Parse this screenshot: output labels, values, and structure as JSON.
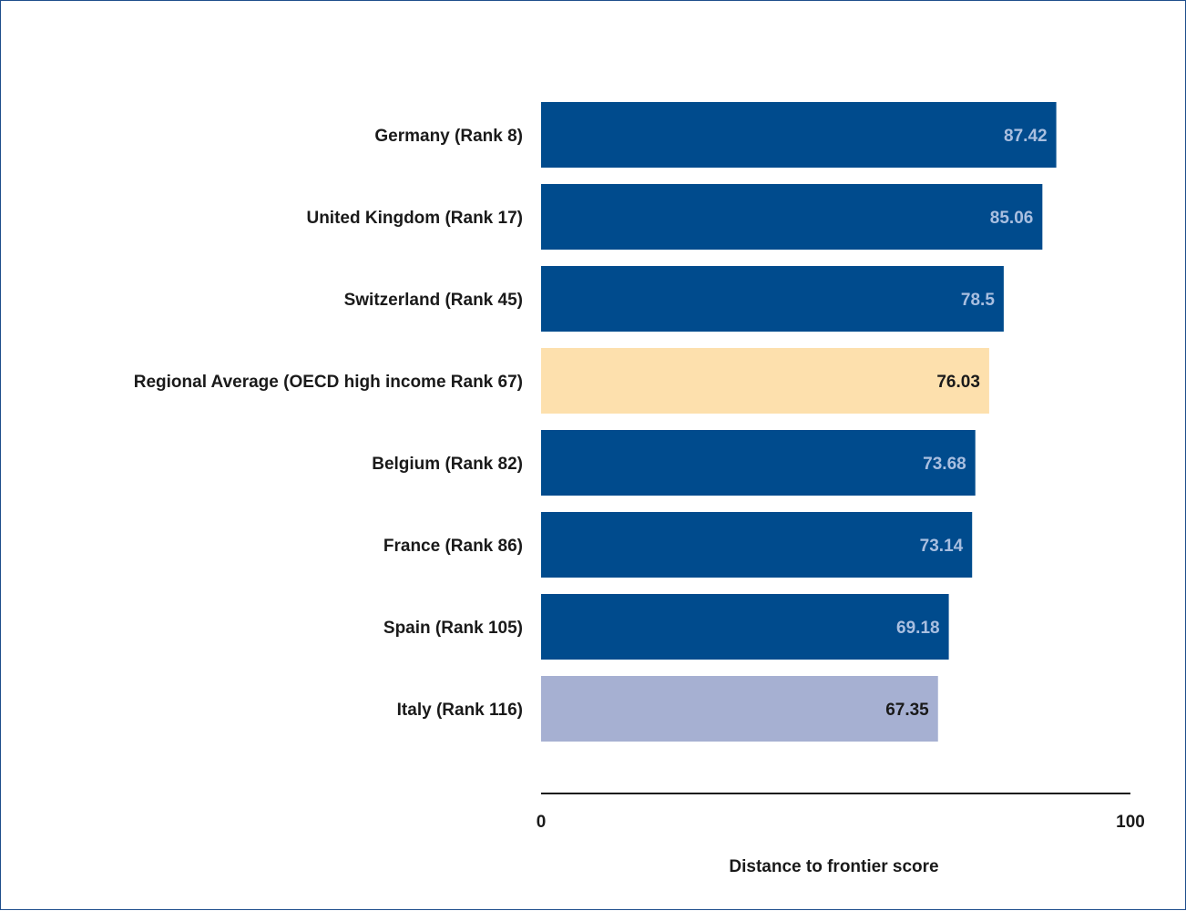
{
  "chart_data": {
    "type": "bar",
    "orientation": "horizontal",
    "title": "",
    "xlabel": "Distance to frontier score",
    "ylabel": "",
    "xlim": [
      0,
      100
    ],
    "x_ticks": [
      "0",
      "100"
    ],
    "grid": false,
    "categories": [
      "Germany (Rank 8)",
      "United Kingdom (Rank 17)",
      "Switzerland (Rank 45)",
      "Regional Average (OECD high income Rank 67)",
      "Belgium (Rank 82)",
      "France (Rank 86)",
      "Spain (Rank 105)",
      "Italy (Rank 116)"
    ],
    "values": [
      87.42,
      85.06,
      78.5,
      76.03,
      73.68,
      73.14,
      69.18,
      67.35
    ],
    "value_labels": [
      "87.42",
      "85.06",
      "78.5",
      "76.03",
      "73.68",
      "73.14",
      "69.18",
      "67.35"
    ],
    "bar_colors": [
      "#004b8d",
      "#004b8d",
      "#004b8d",
      "#fde0ad",
      "#004b8d",
      "#004b8d",
      "#004b8d",
      "#a6b0d2"
    ],
    "value_label_colors": [
      "#a9bfe0",
      "#a9bfe0",
      "#a9bfe0",
      "#1a1a1a",
      "#a9bfe0",
      "#a9bfe0",
      "#a9bfe0",
      "#1a1a1a"
    ]
  }
}
